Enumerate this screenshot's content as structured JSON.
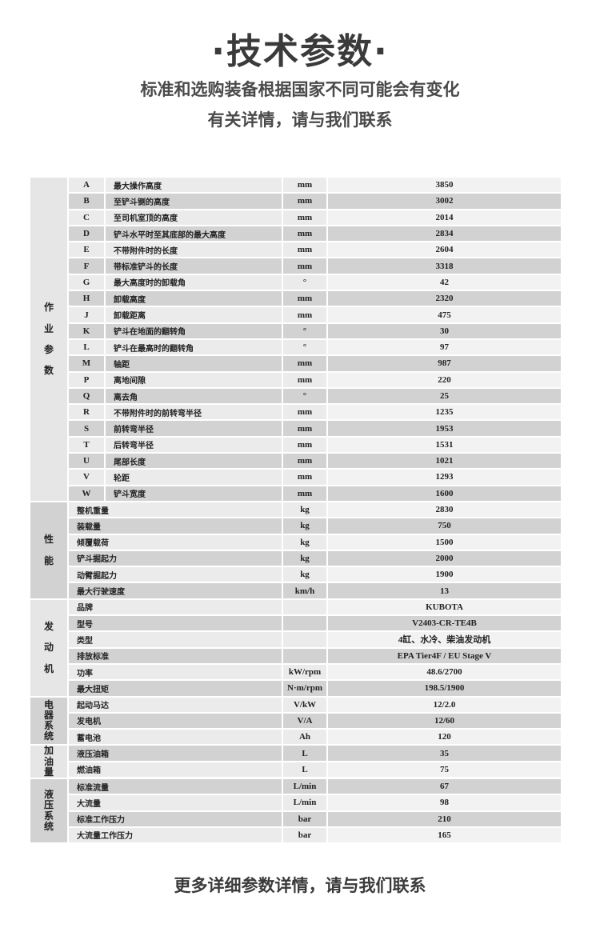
{
  "header": {
    "title": "·技术参数·",
    "subtitle_line1": "标准和选购装备根据国家不同可能会有变化",
    "subtitle_line2": "有关详情，请与我们联系"
  },
  "footer": {
    "text": "更多详细参数详情，请与我们联系"
  },
  "spec_sections": [
    {
      "category": "作业参数",
      "tone": "light",
      "rows": [
        {
          "code": "A",
          "name": "最大操作高度",
          "unit": "mm",
          "value": "3850"
        },
        {
          "code": "B",
          "name": "至铲斗铡的高度",
          "unit": "mm",
          "value": "3002"
        },
        {
          "code": "C",
          "name": "至司机室顶的高度",
          "unit": "mm",
          "value": "2014"
        },
        {
          "code": "D",
          "name": "铲斗水平时至其底部的最大高度",
          "unit": "mm",
          "value": "2834"
        },
        {
          "code": "E",
          "name": "不带附件时的长度",
          "unit": "mm",
          "value": "2604"
        },
        {
          "code": "F",
          "name": "带标准铲斗的长度",
          "unit": "mm",
          "value": "3318"
        },
        {
          "code": "G",
          "name": "最大高度时的卸载角",
          "unit": "°",
          "value": "42"
        },
        {
          "code": "H",
          "name": "卸载高度",
          "unit": "mm",
          "value": "2320"
        },
        {
          "code": "J",
          "name": "卸载距离",
          "unit": "mm",
          "value": "475"
        },
        {
          "code": "K",
          "name": "铲斗在地面的翻转角",
          "unit": "°",
          "value": "30"
        },
        {
          "code": "L",
          "name": "铲斗在最高时的翻转角",
          "unit": "°",
          "value": "97"
        },
        {
          "code": "M",
          "name": "轴距",
          "unit": "mm",
          "value": "987"
        },
        {
          "code": "P",
          "name": "离地间隙",
          "unit": "mm",
          "value": "220"
        },
        {
          "code": "Q",
          "name": "离去角",
          "unit": "°",
          "value": "25"
        },
        {
          "code": "R",
          "name": "不带附件时的前转弯半径",
          "unit": "mm",
          "value": "1235"
        },
        {
          "code": "S",
          "name": "前转弯半径",
          "unit": "mm",
          "value": "1953"
        },
        {
          "code": "T",
          "name": "后转弯半径",
          "unit": "mm",
          "value": "1531"
        },
        {
          "code": "U",
          "name": "尾部长度",
          "unit": "mm",
          "value": "1021"
        },
        {
          "code": "V",
          "name": "轮距",
          "unit": "mm",
          "value": "1293"
        },
        {
          "code": "W",
          "name": "铲斗宽度",
          "unit": "mm",
          "value": "1600"
        }
      ]
    },
    {
      "category": "性能",
      "tone": "dark",
      "rows": [
        {
          "name": "整机重量",
          "unit": "kg",
          "value": "2830"
        },
        {
          "name": "装载量",
          "unit": "kg",
          "value": "750"
        },
        {
          "name": "倾覆载荷",
          "unit": "kg",
          "value": "1500"
        },
        {
          "name": "铲斗掘起力",
          "unit": "kg",
          "value": "2000"
        },
        {
          "name": "动臂掘起力",
          "unit": "kg",
          "value": "1900"
        },
        {
          "name": "最大行驶速度",
          "unit": "km/h",
          "value": "13"
        }
      ]
    },
    {
      "category": "发动机",
      "tone": "light",
      "rows": [
        {
          "name": "品牌",
          "unit": "",
          "value": "KUBOTA"
        },
        {
          "name": "型号",
          "unit": "",
          "value": "V2403-CR-TE4B"
        },
        {
          "name": "类型",
          "unit": "",
          "value": "4缸、水冷、柴油发动机"
        },
        {
          "name": "排放标准",
          "unit": "",
          "value": "EPA Tier4F / EU Stage V"
        },
        {
          "name": "功率",
          "unit": "kW/rpm",
          "value": "48.6/2700"
        },
        {
          "name": "最大扭矩",
          "unit": "N·m/rpm",
          "value": "198.5/1900"
        }
      ]
    },
    {
      "category": "电器系统",
      "tone": "dark",
      "rows": [
        {
          "name": "起动马达",
          "unit": "V/kW",
          "value": "12/2.0"
        },
        {
          "name": "发电机",
          "unit": "V/A",
          "value": "12/60"
        },
        {
          "name": "蓄电池",
          "unit": "Ah",
          "value": "120"
        }
      ]
    },
    {
      "category": "加油量",
      "tone": "light",
      "rows": [
        {
          "name": "液压油箱",
          "unit": "L",
          "value": "35"
        },
        {
          "name": "燃油箱",
          "unit": "L",
          "value": "75"
        }
      ]
    },
    {
      "category": "液压系统",
      "tone": "dark",
      "rows": [
        {
          "name": "标准流量",
          "unit": "L/min",
          "value": "67"
        },
        {
          "name": "大流量",
          "unit": "L/min",
          "value": "98"
        },
        {
          "name": "标准工作压力",
          "unit": "bar",
          "value": "210"
        },
        {
          "name": "大流量工作压力",
          "unit": "bar",
          "value": "165"
        }
      ]
    }
  ],
  "colors": {
    "light_row": "#ebebeb",
    "dark_row": "#d2d2d2",
    "light_category": "#e6e6e6",
    "dark_category": "#d2d2d2"
  }
}
